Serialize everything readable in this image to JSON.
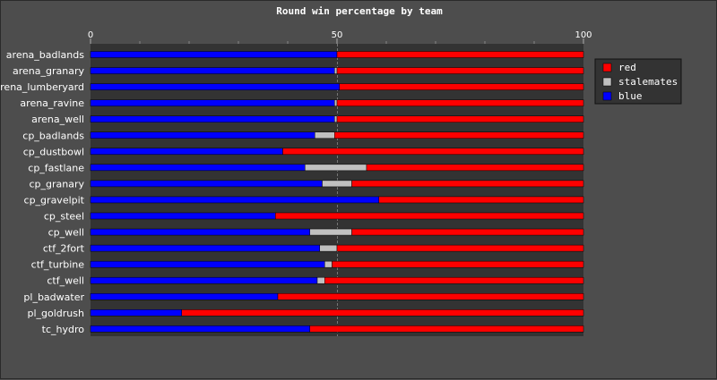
{
  "chart_data": {
    "type": "bar",
    "stacked": true,
    "orientation": "horizontal",
    "title": "Round win percentage by team",
    "xlim": [
      0,
      100
    ],
    "x_ticks": [
      "0",
      "50",
      "100"
    ],
    "grid": true,
    "legend_position": "right",
    "categories": [
      "arena_badlands",
      "arena_granary",
      "arena_lumberyard",
      "arena_ravine",
      "arena_well",
      "cp_badlands",
      "cp_dustbowl",
      "cp_fastlane",
      "cp_granary",
      "cp_gravelpit",
      "cp_steel",
      "cp_well",
      "ctf_2fort",
      "ctf_turbine",
      "ctf_well",
      "pl_badwater",
      "pl_goldrush",
      "tc_hydro"
    ],
    "series": [
      {
        "name": "blue",
        "color": "#0000ff",
        "values": [
          50,
          49.5,
          50.5,
          49.5,
          49.5,
          45.5,
          39,
          43.5,
          47,
          58.5,
          37.5,
          44.5,
          46.5,
          47.5,
          46,
          38,
          18.5,
          44.5
        ]
      },
      {
        "name": "stalemates",
        "color": "#c0c0c0",
        "values": [
          0,
          0.5,
          0,
          0.5,
          0.5,
          4,
          0,
          12.5,
          6,
          0,
          0,
          8.5,
          3.5,
          1.5,
          1.5,
          0,
          0,
          0
        ]
      },
      {
        "name": "red",
        "color": "#ff0000",
        "values": [
          50,
          50,
          49.5,
          50,
          50,
          50.5,
          61,
          44,
          47,
          41.5,
          62.5,
          47,
          50,
          51,
          52.5,
          62,
          81.5,
          55.5
        ]
      }
    ],
    "legend_order": [
      "red",
      "stalemates",
      "blue"
    ]
  }
}
